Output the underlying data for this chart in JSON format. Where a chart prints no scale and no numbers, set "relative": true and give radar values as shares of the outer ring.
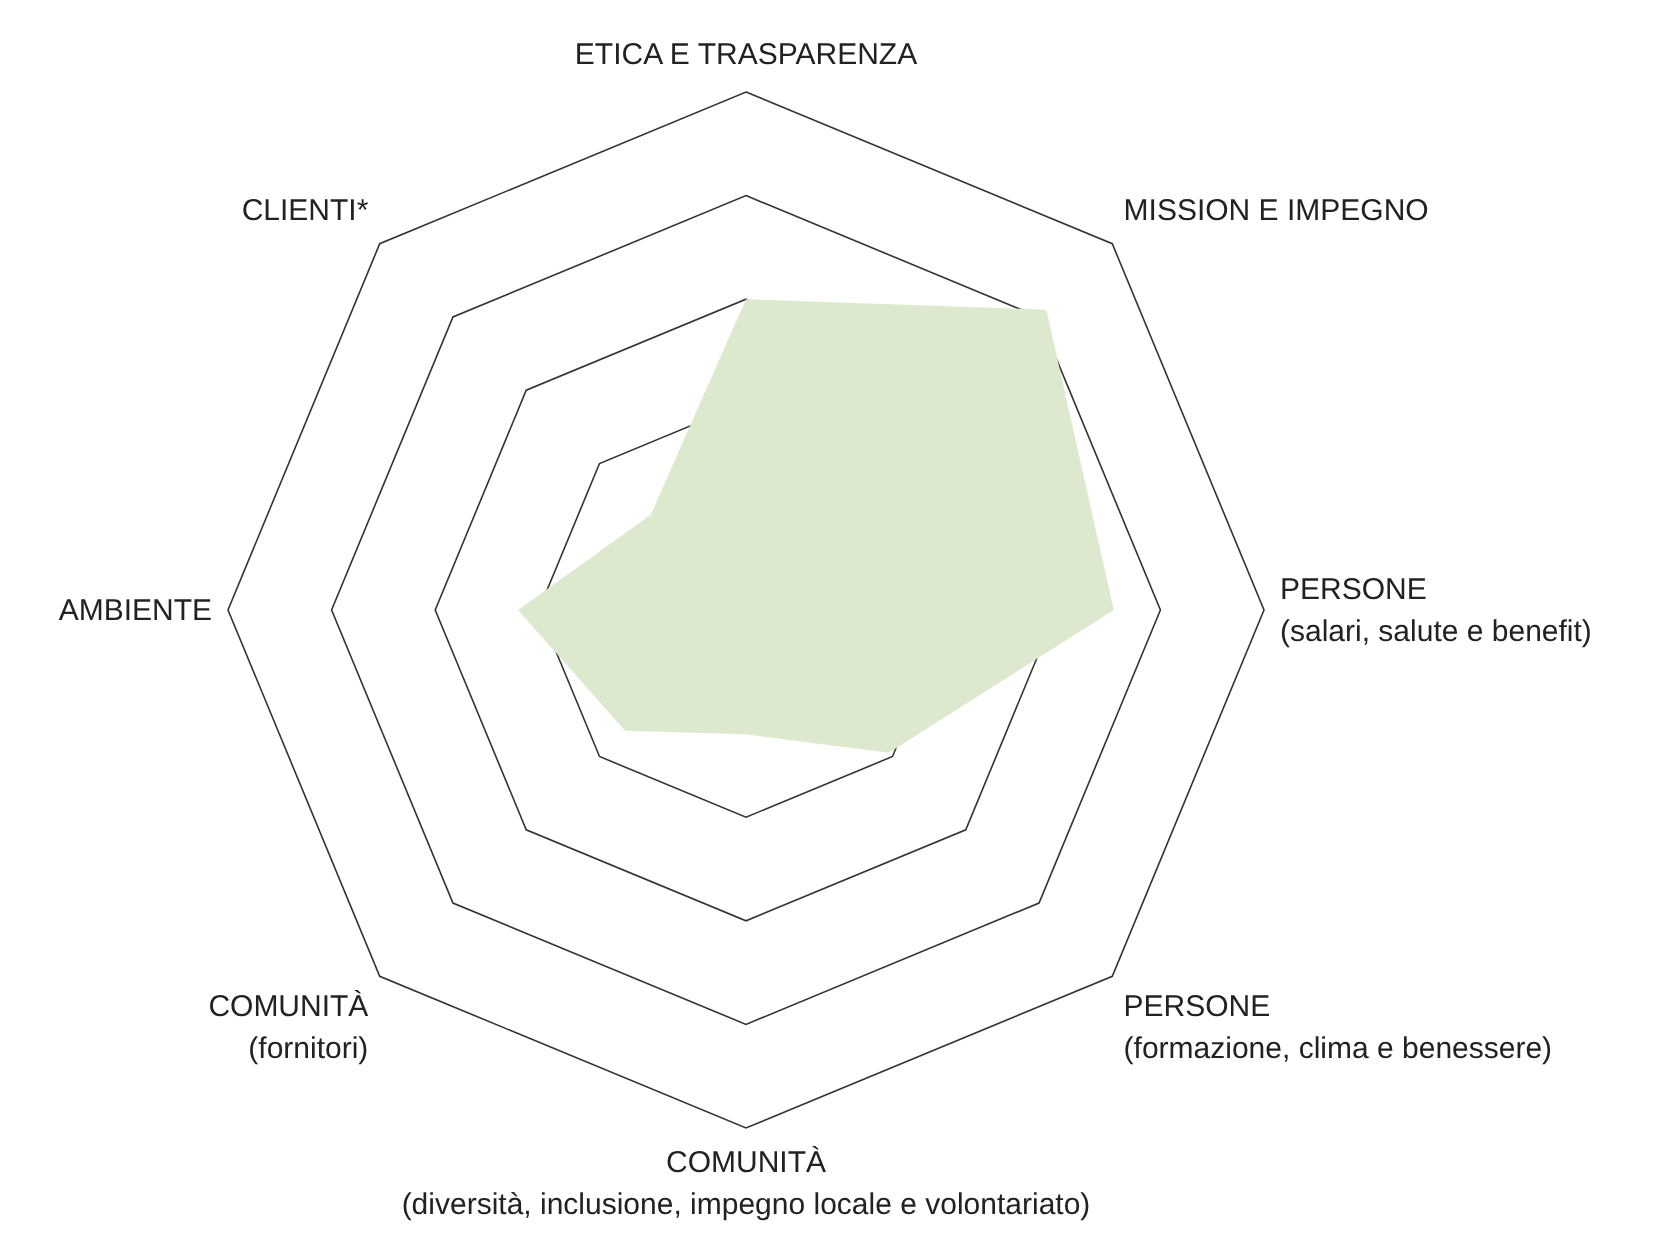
{
  "chart_data": {
    "type": "radar",
    "categories": [
      "ETICA E TRASPARENZA",
      "MISSION E IMPEGNO",
      "PERSONE\n(salari, salute e benefit)",
      "PERSONE\n(formazione, clima e benessere)",
      "COMUNITÀ\n(diversità, inclusione, impegno locale e volontariato)",
      "COMUNITÀ\n(fornitori)",
      "AMBIENTE",
      "CLIENTI*"
    ],
    "series": [
      {
        "color": "#dce9cf",
        "values": [
          0.6,
          0.82,
          0.71,
          0.39,
          0.24,
          0.33,
          0.44,
          0.26
        ]
      }
    ],
    "relative": true,
    "grid": true
  }
}
